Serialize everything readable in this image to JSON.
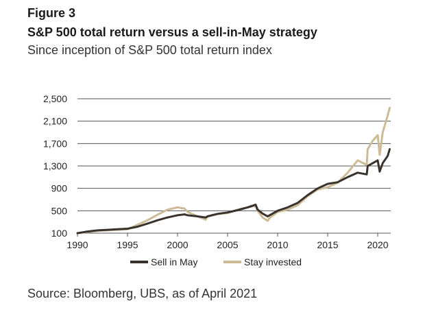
{
  "figure": {
    "label": "Figure 3",
    "title": "S&P 500 total return versus a sell-in-May strategy",
    "subtitle": "Since inception of S&P 500 total return index",
    "source": "Source: Bloomberg, UBS, as of April 2021"
  },
  "chart_data": {
    "type": "line",
    "title": "",
    "xlabel": "",
    "ylabel": "",
    "ylim": [
      100,
      2500
    ],
    "xlim": [
      1990,
      2021.3
    ],
    "grid": "horizontal",
    "legend_position": "bottom-center",
    "y_ticks": [
      100,
      500,
      900,
      1300,
      1700,
      2100,
      2500
    ],
    "y_tick_labels": [
      "100",
      "500",
      "900",
      "1,300",
      "1,700",
      "2,100",
      "2,500"
    ],
    "x_ticks": [
      1990,
      1995,
      2000,
      2005,
      2010,
      2015,
      2020
    ],
    "x_tick_labels": [
      "1990",
      "1995",
      "2000",
      "2005",
      "2010",
      "2015",
      "2020"
    ],
    "series": [
      {
        "name": "Sell in May",
        "color": "#3a332d",
        "x": [
          1990,
          1991,
          1992,
          1993,
          1994,
          1995,
          1996,
          1997,
          1998,
          1999,
          2000,
          2000.7,
          2001,
          2002,
          2002.8,
          2003,
          2004,
          2005,
          2006,
          2007,
          2007.8,
          2008,
          2008.5,
          2009,
          2009.2,
          2010,
          2011,
          2012,
          2013,
          2014,
          2015,
          2016,
          2017,
          2018,
          2018.9,
          2019,
          2019.5,
          2020,
          2020.2,
          2020.5,
          2021,
          2021.2
        ],
        "values": [
          100,
          130,
          150,
          160,
          170,
          180,
          215,
          270,
          330,
          380,
          420,
          435,
          420,
          400,
          380,
          400,
          445,
          470,
          510,
          560,
          610,
          520,
          450,
          400,
          420,
          500,
          560,
          640,
          780,
          900,
          980,
          1010,
          1100,
          1180,
          1150,
          1300,
          1350,
          1400,
          1200,
          1350,
          1480,
          1600
        ]
      },
      {
        "name": "Stay invested",
        "color": "#cdbb98",
        "x": [
          1990,
          1991,
          1992,
          1993,
          1994,
          1995,
          1996,
          1997,
          1998,
          1999,
          2000,
          2000.7,
          2001,
          2002,
          2002.8,
          2003,
          2004,
          2005,
          2006,
          2007,
          2007.8,
          2008,
          2008.5,
          2009,
          2009.2,
          2010,
          2011,
          2012,
          2013,
          2014,
          2015,
          2016,
          2017,
          2018,
          2018.9,
          2019,
          2019.5,
          2020,
          2020.2,
          2020.5,
          2021,
          2021.2
        ],
        "values": [
          100,
          120,
          140,
          150,
          160,
          170,
          250,
          330,
          430,
          520,
          560,
          540,
          480,
          400,
          340,
          400,
          440,
          460,
          520,
          560,
          590,
          500,
          380,
          320,
          370,
          480,
          520,
          600,
          760,
          880,
          920,
          1000,
          1180,
          1400,
          1320,
          1600,
          1750,
          1850,
          1500,
          1900,
          2200,
          2340
        ]
      }
    ]
  }
}
